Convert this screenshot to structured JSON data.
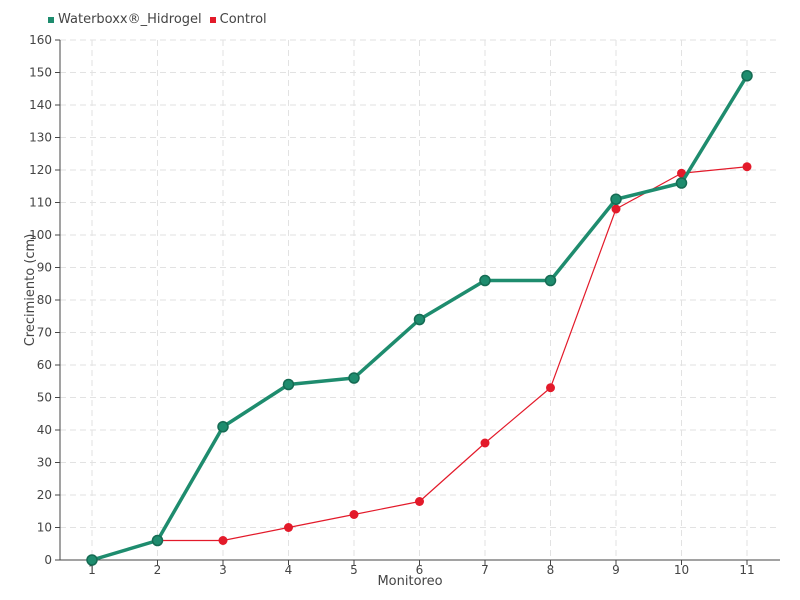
{
  "chart_data": {
    "type": "line",
    "title": "",
    "xlabel": "Monitoreo",
    "ylabel": "Crecimiento (cm)",
    "categories": [
      "1",
      "2",
      "3",
      "4",
      "5",
      "6",
      "7",
      "8",
      "9",
      "10",
      "11"
    ],
    "ylim": [
      0,
      160
    ],
    "yticks": [
      "0",
      "10",
      "20",
      "30",
      "40",
      "50",
      "60",
      "70",
      "80",
      "90",
      "100",
      "110",
      "120",
      "130",
      "140",
      "150",
      "160"
    ],
    "grid": true,
    "legend_position": "top-left",
    "series": [
      {
        "name": "Waterboxx®_Hidrogel",
        "color": "#1e8c6e",
        "values": [
          0,
          6,
          41,
          54,
          56,
          74,
          86,
          86,
          111,
          116,
          149
        ]
      },
      {
        "name": "Control",
        "color": "#e31a2a",
        "values": [
          0,
          6,
          6,
          10,
          14,
          18,
          36,
          53,
          108,
          119,
          121
        ]
      }
    ]
  }
}
